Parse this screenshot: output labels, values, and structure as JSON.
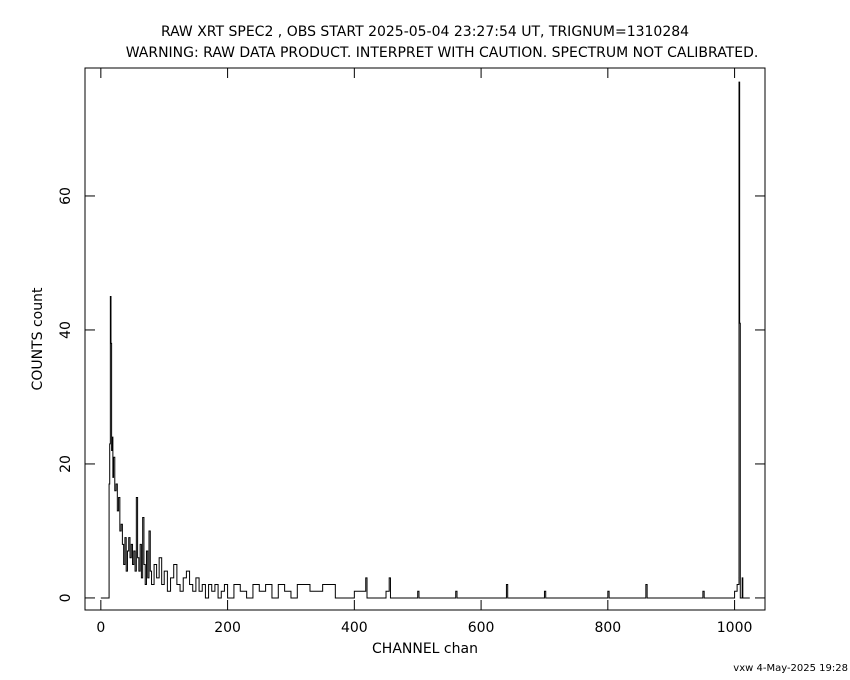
{
  "chart_data": {
    "type": "line",
    "title": "RAW XRT SPEC2 , OBS START 2025-05-04 23:27:54 UT, TRIGNUM=1310284",
    "subtitle": "WARNING: RAW DATA PRODUCT. INTERPRET WITH CAUTION. SPECTRUM NOT CALIBRATED.",
    "x_label": "CHANNEL  chan",
    "y_label": "COUNTS  count",
    "footer": "vxw  4-May-2025 19:28",
    "xlim": [
      -25,
      1048
    ],
    "ylim": [
      -1.8,
      79.1
    ],
    "xticks": [
      0,
      200,
      400,
      600,
      800,
      1000
    ],
    "yticks": [
      0,
      20,
      40,
      60
    ],
    "color": "#000000",
    "x": [
      0,
      12,
      13,
      14,
      15,
      16,
      17,
      18,
      19,
      20,
      22,
      24,
      26,
      28,
      30,
      32,
      34,
      36,
      38,
      40,
      42,
      44,
      46,
      48,
      50,
      52,
      54,
      56,
      58,
      60,
      62,
      64,
      66,
      68,
      70,
      72,
      74,
      76,
      78,
      80,
      84,
      88,
      92,
      96,
      100,
      105,
      110,
      115,
      120,
      125,
      130,
      135,
      140,
      145,
      150,
      155,
      160,
      165,
      170,
      175,
      180,
      185,
      190,
      195,
      200,
      210,
      220,
      230,
      240,
      250,
      260,
      270,
      280,
      290,
      300,
      310,
      330,
      350,
      370,
      400,
      418,
      420,
      450,
      455,
      457,
      500,
      502,
      560,
      562,
      640,
      642,
      700,
      702,
      800,
      802,
      860,
      862,
      950,
      952,
      1000,
      1004,
      1007,
      1008,
      1009,
      1012,
      1013,
      1023
    ],
    "values": [
      0,
      0,
      17,
      23,
      45,
      38,
      22,
      24,
      18,
      21,
      16,
      17,
      13,
      15,
      10,
      11,
      8,
      5,
      9,
      4,
      7,
      9,
      6,
      8,
      5,
      7,
      4,
      15,
      6,
      4,
      8,
      3,
      12,
      5,
      2,
      7,
      3,
      10,
      4,
      2,
      5,
      3,
      6,
      2,
      4,
      1,
      3,
      5,
      2,
      1,
      3,
      4,
      2,
      1,
      3,
      1,
      2,
      0,
      2,
      1,
      2,
      0,
      1,
      2,
      0,
      2,
      1,
      0,
      2,
      1,
      2,
      0,
      2,
      1,
      0,
      2,
      1,
      2,
      0,
      1,
      3,
      0,
      1,
      3,
      0,
      1,
      0,
      1,
      0,
      2,
      0,
      1,
      0,
      1,
      0,
      2,
      0,
      1,
      0,
      1,
      2,
      77,
      41,
      0,
      3,
      0,
      0
    ]
  }
}
